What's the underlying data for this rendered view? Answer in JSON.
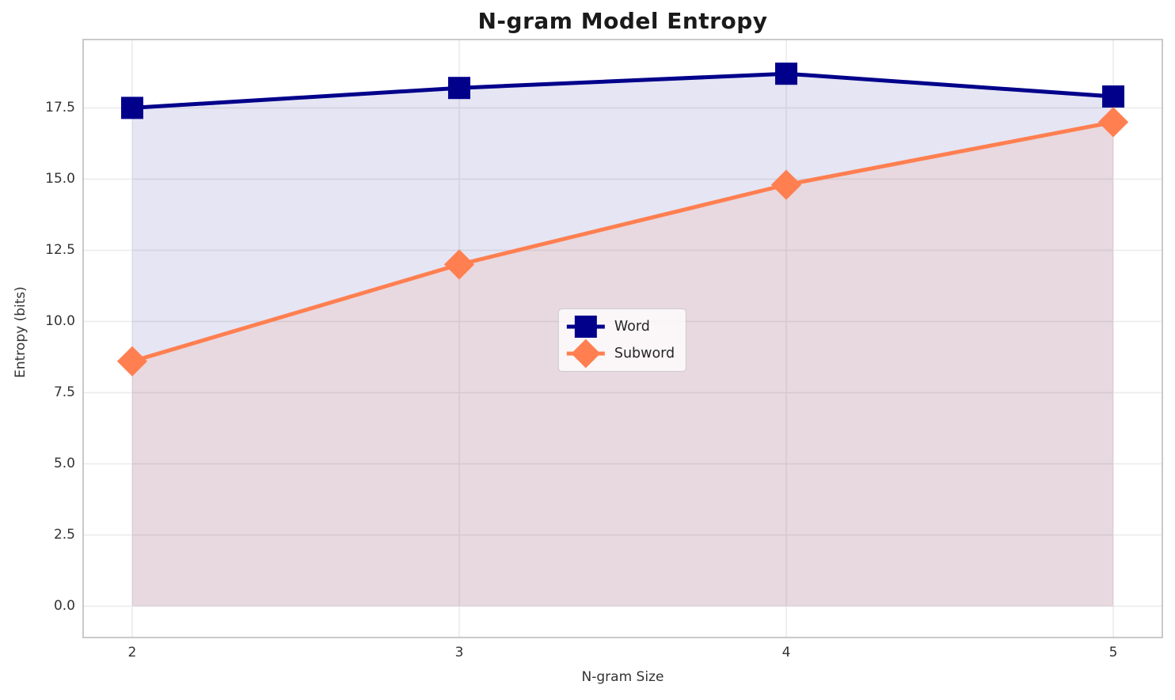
{
  "chart_data": {
    "type": "line",
    "title": "N-gram Model Entropy",
    "xlabel": "N-gram Size",
    "ylabel": "Entropy (bits)",
    "x": [
      2,
      3,
      4,
      5
    ],
    "series": [
      {
        "name": "Word",
        "values": [
          17.5,
          18.2,
          18.7,
          17.9
        ],
        "color": "#00008b",
        "marker": "square",
        "fill_opacity": 0.1
      },
      {
        "name": "Subword",
        "values": [
          8.6,
          12.0,
          14.8,
          17.0
        ],
        "color": "#ff7f50",
        "marker": "diamond",
        "fill_opacity": 0.12
      }
    ],
    "xticks": [
      2,
      3,
      4,
      5
    ],
    "xtick_labels": [
      "2",
      "3",
      "4",
      "5"
    ],
    "yticks": [
      0.0,
      2.5,
      5.0,
      7.5,
      10.0,
      12.5,
      15.0,
      17.5
    ],
    "ytick_labels": [
      "0.0",
      "2.5",
      "5.0",
      "7.5",
      "10.0",
      "12.5",
      "15.0",
      "17.5"
    ],
    "xlim": [
      1.85,
      5.15
    ],
    "ylim": [
      -1.1,
      19.9
    ],
    "grid": true,
    "grid_color": "#ebebeb",
    "spine_color": "#c9c9c9",
    "area_fill_baseline": 0,
    "line_width": 5,
    "marker_size": 28,
    "legend_position": "center",
    "legend_labels": [
      "Word",
      "Subword"
    ]
  }
}
